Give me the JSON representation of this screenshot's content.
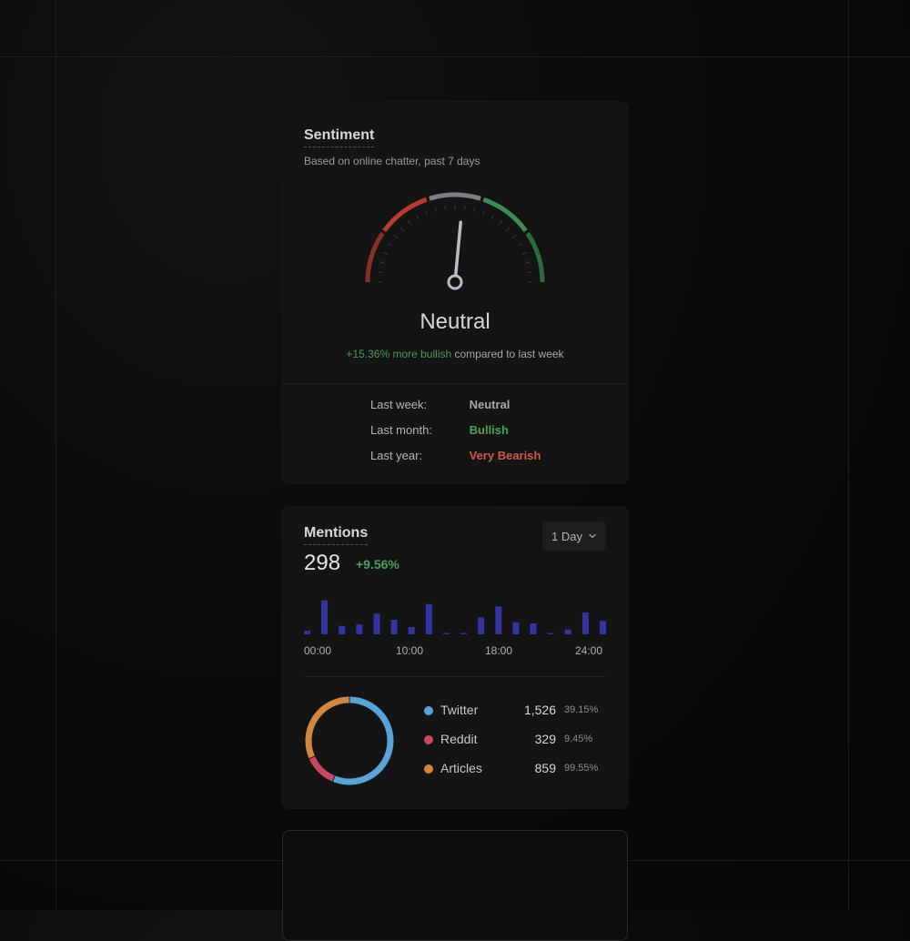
{
  "sentiment": {
    "title": "Sentiment",
    "subtitle": "Based on online chatter, past 7 days",
    "gauge_label": "Neutral",
    "gauge_value": 0.53,
    "compare_highlight": "+15.36% more bullish",
    "compare_rest": "compared to last week",
    "history": [
      {
        "label": "Last week:",
        "value": "Neutral",
        "tone": "neutral"
      },
      {
        "label": "Last month:",
        "value": "Bullish",
        "tone": "bull"
      },
      {
        "label": "Last year:",
        "value": "Very Bearish",
        "tone": "bear"
      }
    ],
    "colors": {
      "very_bearish": "#8a2e26",
      "bearish": "#b83a30",
      "neutral": "#7c7f86",
      "bullish": "#3f8a55",
      "very_bullish": "#2f6b3e"
    }
  },
  "mentions": {
    "title": "Mentions",
    "range_label": "1 Day",
    "count": "298",
    "change": "+9.56%",
    "chart_data": {
      "type": "bar",
      "values": [
        3,
        28,
        7,
        8,
        17,
        12,
        6,
        25,
        1,
        1,
        14,
        23,
        10,
        9,
        1,
        4,
        18,
        11
      ],
      "x_ticks": [
        "00:00",
        "10:00",
        "18:00",
        "24:00"
      ],
      "color": "#3434a0"
    },
    "sources": [
      {
        "name": "Twitter",
        "value": "1,526",
        "pct": "39.15%",
        "color": "#5aa3d6"
      },
      {
        "name": "Reddit",
        "value": "329",
        "pct": "9.45%",
        "color": "#c8485f"
      },
      {
        "name": "Articles",
        "value": "859",
        "pct": "99.55%",
        "color": "#d08740"
      }
    ],
    "donut_values": [
      1526,
      329,
      859
    ]
  }
}
